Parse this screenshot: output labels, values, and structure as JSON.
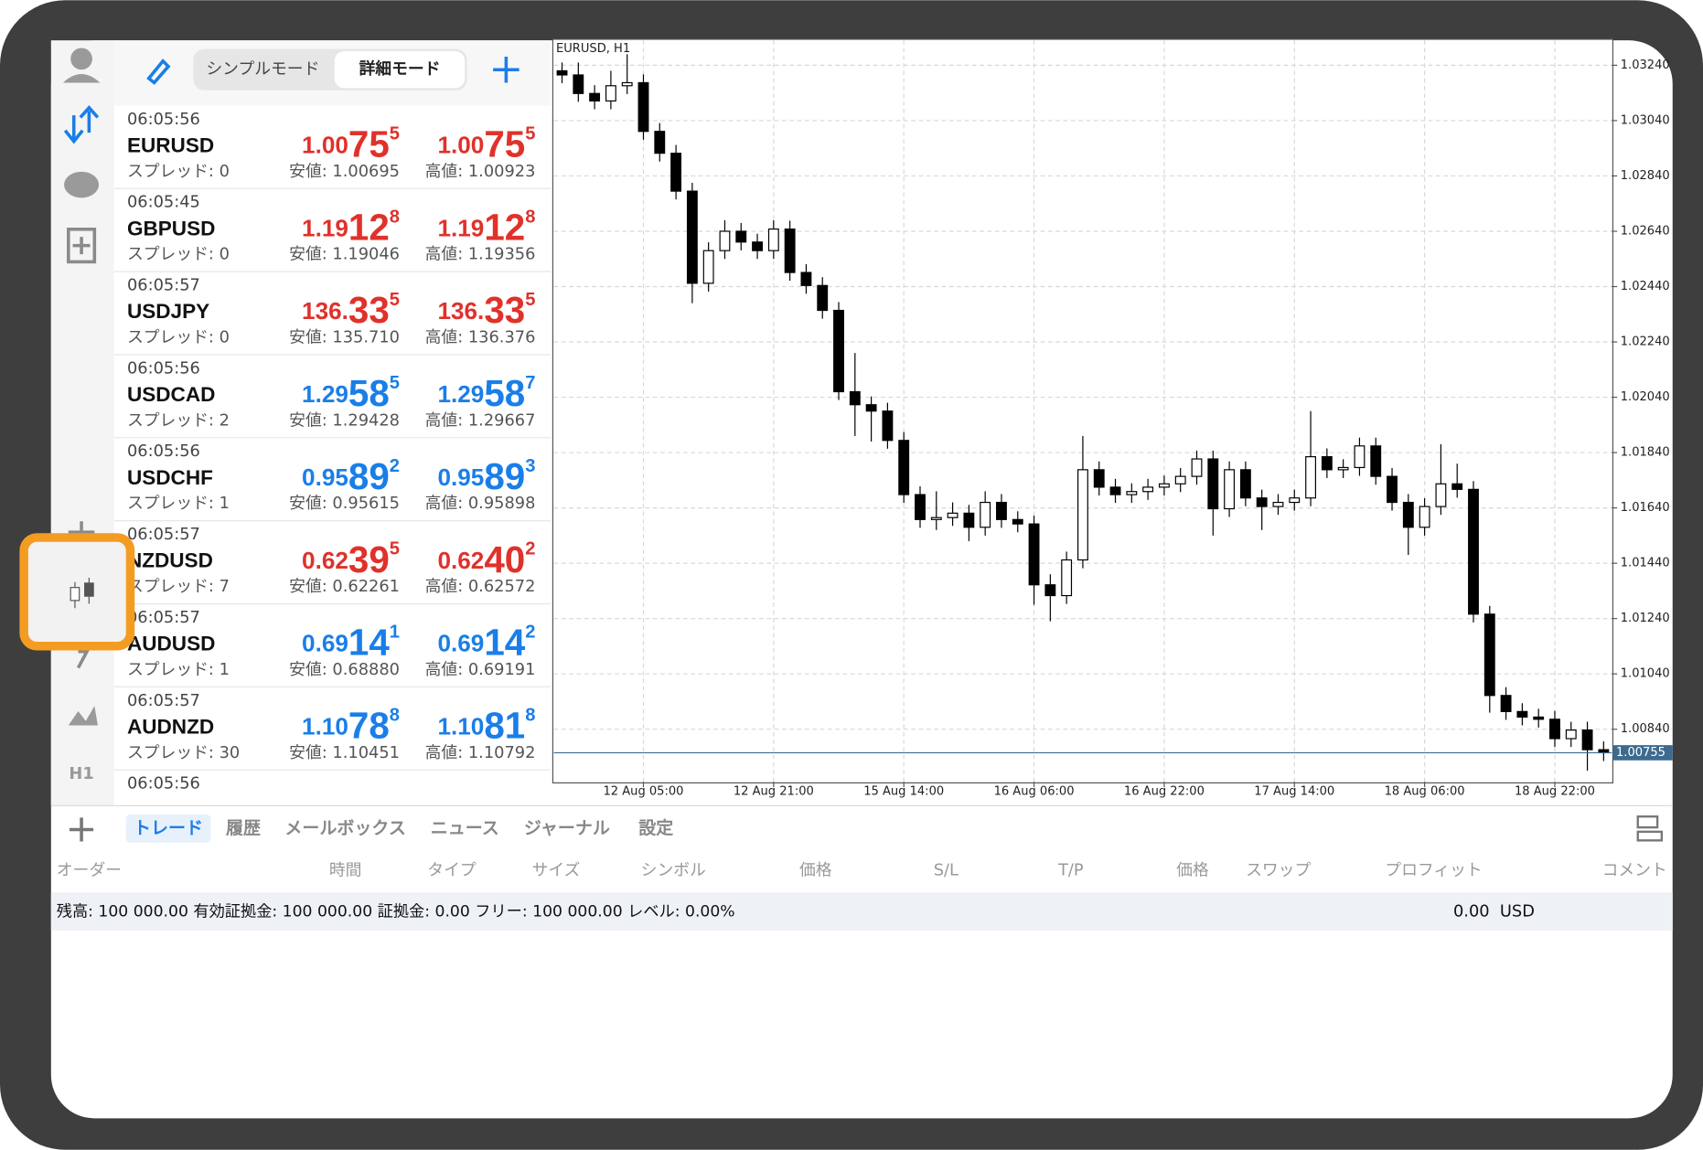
{
  "toolbar": {
    "modes": [
      "シンプルモード",
      "詳細モード"
    ]
  },
  "sidebar": {
    "timeframe": "H1"
  },
  "quotes": [
    {
      "time": "06:05:56",
      "symbol": "EURUSD",
      "spread": "スプレッド: 0",
      "bid": [
        "1.00",
        "75",
        "5"
      ],
      "ask": [
        "1.00",
        "75",
        "5"
      ],
      "low": "安値: 1.00695",
      "high": "高値: 1.00923",
      "color": "#e0312b"
    },
    {
      "time": "06:05:45",
      "symbol": "GBPUSD",
      "spread": "スプレッド: 0",
      "bid": [
        "1.19",
        "12",
        "8"
      ],
      "ask": [
        "1.19",
        "12",
        "8"
      ],
      "low": "安値: 1.19046",
      "high": "高値: 1.19356",
      "color": "#e0312b"
    },
    {
      "time": "06:05:57",
      "symbol": "USDJPY",
      "spread": "スプレッド: 0",
      "bid": [
        "136.",
        "33",
        "5"
      ],
      "ask": [
        "136.",
        "33",
        "5"
      ],
      "low": "安値: 135.710",
      "high": "高値: 136.376",
      "color": "#e0312b"
    },
    {
      "time": "06:05:56",
      "symbol": "USDCAD",
      "spread": "スプレッド: 2",
      "bid": [
        "1.29",
        "58",
        "5"
      ],
      "ask": [
        "1.29",
        "58",
        "7"
      ],
      "low": "安値: 1.29428",
      "high": "高値: 1.29667",
      "color": "#1a7ee8"
    },
    {
      "time": "06:05:56",
      "symbol": "USDCHF",
      "spread": "スプレッド: 1",
      "bid": [
        "0.95",
        "89",
        "2"
      ],
      "ask": [
        "0.95",
        "89",
        "3"
      ],
      "low": "安値: 0.95615",
      "high": "高値: 0.95898",
      "color": "#1a7ee8"
    },
    {
      "time": "06:05:57",
      "symbol": "NZDUSD",
      "spread": "スプレッド: 7",
      "bid": [
        "0.62",
        "39",
        "5"
      ],
      "ask": [
        "0.62",
        "40",
        "2"
      ],
      "low": "安値: 0.62261",
      "high": "高値: 0.62572",
      "color": "#e0312b"
    },
    {
      "time": "06:05:57",
      "symbol": "AUDUSD",
      "spread": "スプレッド: 1",
      "bid": [
        "0.69",
        "14",
        "1"
      ],
      "ask": [
        "0.69",
        "14",
        "2"
      ],
      "low": "安値: 0.68880",
      "high": "高値: 0.69191",
      "color": "#1a7ee8"
    },
    {
      "time": "06:05:57",
      "symbol": "AUDNZD",
      "spread": "スプレッド: 30",
      "bid": [
        "1.10",
        "78",
        "8"
      ],
      "ask": [
        "1.10",
        "81",
        "8"
      ],
      "low": "安値: 1.10451",
      "high": "高値: 1.10792",
      "color": "#1a7ee8"
    },
    {
      "time": "06:05:56"
    }
  ],
  "chart_data": {
    "type": "candlestick",
    "title": "EURUSD, H1",
    "ylim": [
      1.0065,
      1.0333
    ],
    "yticks": [
      {
        "value": 1.0324,
        "label": "1.03240"
      },
      {
        "value": 1.0304,
        "label": "1.03040"
      },
      {
        "value": 1.0284,
        "label": "1.02840"
      },
      {
        "value": 1.0264,
        "label": "1.02640"
      },
      {
        "value": 1.0244,
        "label": "1.02440"
      },
      {
        "value": 1.0224,
        "label": "1.02240"
      },
      {
        "value": 1.0204,
        "label": "1.02040"
      },
      {
        "value": 1.0184,
        "label": "1.01840"
      },
      {
        "value": 1.0164,
        "label": "1.01640"
      },
      {
        "value": 1.0144,
        "label": "1.01440"
      },
      {
        "value": 1.0124,
        "label": "1.01240"
      },
      {
        "value": 1.0104,
        "label": "1.01040"
      },
      {
        "value": 1.0084,
        "label": "1.00840"
      }
    ],
    "xlim": [
      0,
      65
    ],
    "xticks": [
      {
        "value": 5,
        "label": "12 Aug 05:00"
      },
      {
        "value": 13,
        "label": "12 Aug 21:00"
      },
      {
        "value": 21,
        "label": "15 Aug 14:00"
      },
      {
        "value": 29,
        "label": "16 Aug 06:00"
      },
      {
        "value": 37,
        "label": "16 Aug 22:00"
      },
      {
        "value": 45,
        "label": "17 Aug 14:00"
      },
      {
        "value": 53,
        "label": "18 Aug 06:00"
      },
      {
        "value": 61,
        "label": "18 Aug 22:00"
      }
    ],
    "grid": true,
    "price": 1.00755,
    "open": [
      1.0322,
      1.03205,
      1.03138,
      1.03111,
      1.03166,
      1.03177,
      1.03001,
      1.02922,
      1.02785,
      1.02452,
      1.0257,
      1.0264,
      1.02601,
      1.0257,
      1.02648,
      1.02491,
      1.02444,
      1.02354,
      1.0206,
      1.02013,
      1.0199,
      1.01884,
      1.01688,
      1.01598,
      1.01605,
      1.01621,
      1.0157,
      1.0166,
      1.01598,
      1.01582,
      1.01362,
      1.01323,
      1.01452,
      1.01778,
      1.01715,
      1.01688,
      1.01699,
      1.01715,
      1.01727,
      1.01754,
      1.01817,
      1.01637,
      1.01778,
      1.01676,
      1.01645,
      1.0166,
      1.01676,
      1.01825,
      1.01778,
      1.01786,
      1.01864,
      1.01754,
      1.0166,
      1.0157,
      1.01645,
      1.01727,
      1.01707,
      1.01256,
      1.00962,
      1.00904,
      1.00884,
      1.00876,
      1.00806,
      1.00837,
      1.00766
    ],
    "high": [
      1.0325,
      1.0325,
      1.03168,
      1.0322,
      1.0328,
      1.03207,
      1.03031,
      1.02952,
      1.02815,
      1.026,
      1.0268,
      1.0267,
      1.02631,
      1.0268,
      1.02678,
      1.02521,
      1.02474,
      1.02384,
      1.022,
      1.02043,
      1.0202,
      1.01914,
      1.01718,
      1.017,
      1.0166,
      1.01651,
      1.017,
      1.0169,
      1.01628,
      1.01612,
      1.014,
      1.01482,
      1.019,
      1.01808,
      1.01745,
      1.01729,
      1.01745,
      1.01757,
      1.01784,
      1.01847,
      1.01847,
      1.01808,
      1.01808,
      1.01706,
      1.0169,
      1.01706,
      1.0199,
      1.01855,
      1.01816,
      1.01894,
      1.01894,
      1.01784,
      1.0169,
      1.01675,
      1.0187,
      1.018,
      1.01737,
      1.01286,
      1.00992,
      1.00934,
      1.00914,
      1.00906,
      1.00867,
      1.00867,
      1.00796
    ],
    "low": [
      1.03175,
      1.03108,
      1.03081,
      1.03081,
      1.03136,
      1.02971,
      1.02892,
      1.02755,
      1.0238,
      1.02422,
      1.0254,
      1.02571,
      1.0254,
      1.0254,
      1.02461,
      1.02414,
      1.02324,
      1.0203,
      1.019,
      1.0188,
      1.01854,
      1.01658,
      1.01568,
      1.0156,
      1.01575,
      1.0152,
      1.0154,
      1.01568,
      1.01552,
      1.0129,
      1.0123,
      1.01293,
      1.01422,
      1.01685,
      1.01658,
      1.01658,
      1.01669,
      1.01685,
      1.01697,
      1.01724,
      1.0154,
      1.01607,
      1.01646,
      1.0156,
      1.01615,
      1.0163,
      1.01646,
      1.01748,
      1.01748,
      1.01756,
      1.01724,
      1.0163,
      1.0147,
      1.0154,
      1.01615,
      1.01677,
      1.01226,
      1.009,
      1.00874,
      1.00854,
      1.00846,
      1.00776,
      1.00776,
      1.0069,
      1.00725
    ],
    "close": [
      1.03205,
      1.03138,
      1.03111,
      1.03166,
      1.03177,
      1.03001,
      1.02922,
      1.02785,
      1.02452,
      1.0257,
      1.0264,
      1.02601,
      1.0257,
      1.02648,
      1.02491,
      1.02444,
      1.02354,
      1.0206,
      1.02013,
      1.0199,
      1.01884,
      1.01688,
      1.01598,
      1.01605,
      1.01621,
      1.0157,
      1.0166,
      1.01598,
      1.01582,
      1.01362,
      1.01323,
      1.01452,
      1.01778,
      1.01715,
      1.01688,
      1.01699,
      1.01715,
      1.01727,
      1.01754,
      1.01817,
      1.01637,
      1.01778,
      1.01676,
      1.01645,
      1.0166,
      1.01676,
      1.01825,
      1.01778,
      1.01786,
      1.01864,
      1.01754,
      1.0166,
      1.0157,
      1.01645,
      1.01727,
      1.01707,
      1.01256,
      1.00962,
      1.00904,
      1.00884,
      1.00876,
      1.00806,
      1.00837,
      1.00766,
      1.00755
    ]
  },
  "terminal": {
    "tabs": [
      "トレード",
      "履歴",
      "メールボックス",
      "ニュース",
      "ジャーナル",
      "設定"
    ],
    "columns": [
      "オーダー",
      "時間",
      "タイプ",
      "サイズ",
      "シンボル",
      "価格",
      "S/L",
      "T/P",
      "価格",
      "スワップ",
      "プロフィット",
      "コメント"
    ],
    "summary": "残高: 100 000.00 有効証拠金: 100 000.00 証拠金: 0.00 フリー: 100 000.00 レベル: 0.00%",
    "profit": "0.00  USD"
  }
}
